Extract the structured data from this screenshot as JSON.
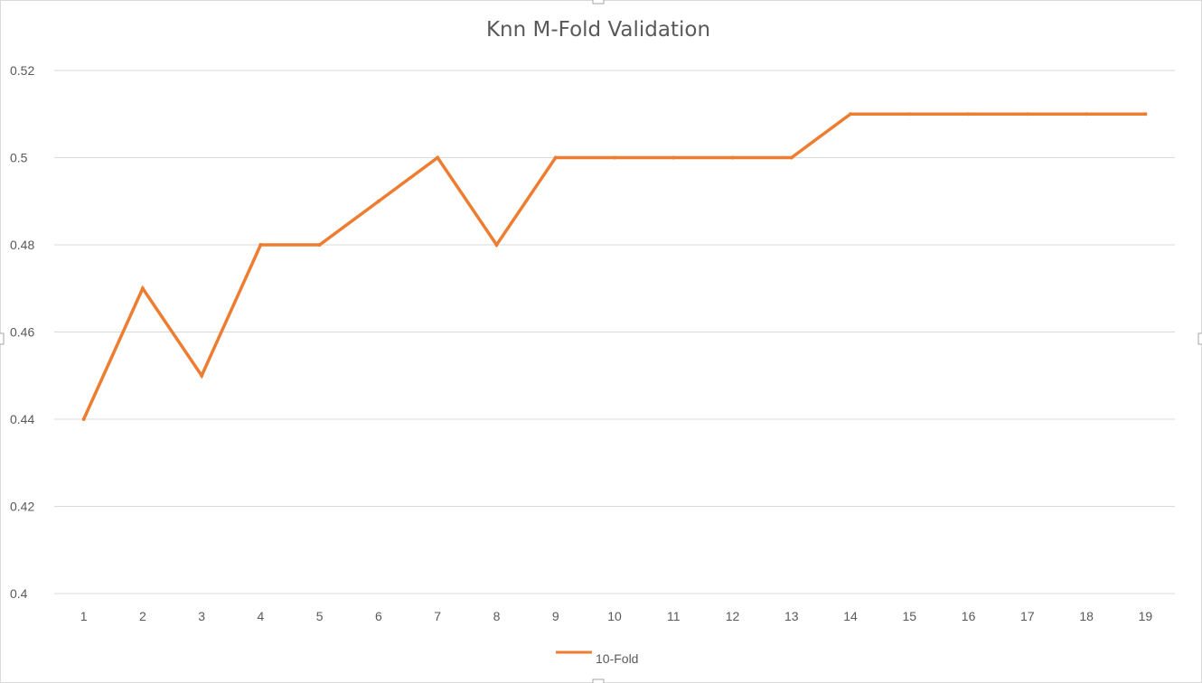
{
  "chart_data": {
    "type": "line",
    "title": "Knn M-Fold Validation",
    "xlabel": "",
    "ylabel": "",
    "categories": [
      "1",
      "2",
      "3",
      "4",
      "5",
      "6",
      "7",
      "8",
      "9",
      "10",
      "11",
      "12",
      "13",
      "14",
      "15",
      "16",
      "17",
      "18",
      "19"
    ],
    "y_ticks": [
      "0.4",
      "0.42",
      "0.44",
      "0.46",
      "0.48",
      "0.5",
      "0.52"
    ],
    "ylim": [
      0.4,
      0.52
    ],
    "grid": true,
    "legend_position": "bottom",
    "series": [
      {
        "name": "10-Fold",
        "color": "#ED7D31",
        "values": [
          0.44,
          0.47,
          0.45,
          0.48,
          0.48,
          0.49,
          0.5,
          0.48,
          0.5,
          0.5,
          0.5,
          0.5,
          0.5,
          0.51,
          0.51,
          0.51,
          0.51,
          0.51,
          0.51
        ]
      }
    ]
  }
}
